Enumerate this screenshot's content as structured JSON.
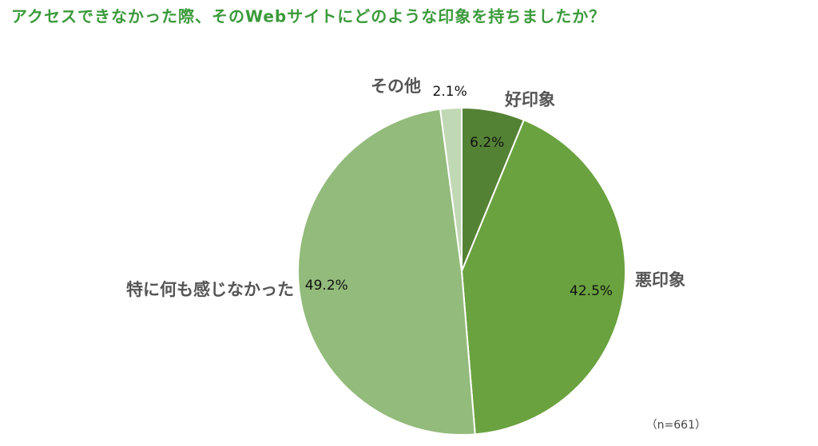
{
  "chart_data": {
    "type": "pie",
    "title": "アクセスできなかった際、そのWebサイトにどのような印象を持ちましたか？",
    "categories": [
      "好印象",
      "悪印象",
      "特に何も感じなかった",
      "その他"
    ],
    "values": [
      6.2,
      42.5,
      49.2,
      2.1
    ],
    "value_labels": [
      "6.2%",
      "42.5%",
      "49.2%",
      "2.1%"
    ],
    "colors": [
      "#548235",
      "#6aa23f",
      "#93bb7b",
      "#c0d8b3"
    ],
    "note": "（n=661）"
  }
}
